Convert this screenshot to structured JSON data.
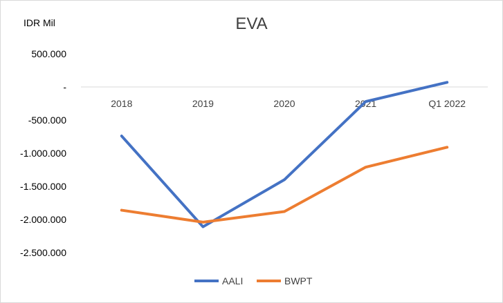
{
  "chart_data": {
    "type": "line",
    "title": "EVA",
    "ylabel": "IDR Mil",
    "xlabel": "",
    "categories": [
      "2018",
      "2019",
      "2020",
      "2021",
      "Q1 2022"
    ],
    "y_tick_labels": [
      "500.000",
      "-",
      "-500.000",
      "-1.000.000",
      "-1.500.000",
      "-2.000.000",
      "-2.500.000"
    ],
    "y_ticks": [
      500000,
      0,
      -500000,
      -1000000,
      -1500000,
      -2000000,
      -2500000
    ],
    "ylim": [
      -2500000,
      500000
    ],
    "grid": "zero line only",
    "legend_position": "bottom",
    "series": [
      {
        "name": "AALI",
        "color": "#4472c4",
        "values": [
          -740000,
          -2110000,
          -1400000,
          -220000,
          70000
        ]
      },
      {
        "name": "BWPT",
        "color": "#ed7d31",
        "values": [
          -1860000,
          -2040000,
          -1880000,
          -1210000,
          -910000
        ]
      }
    ]
  }
}
